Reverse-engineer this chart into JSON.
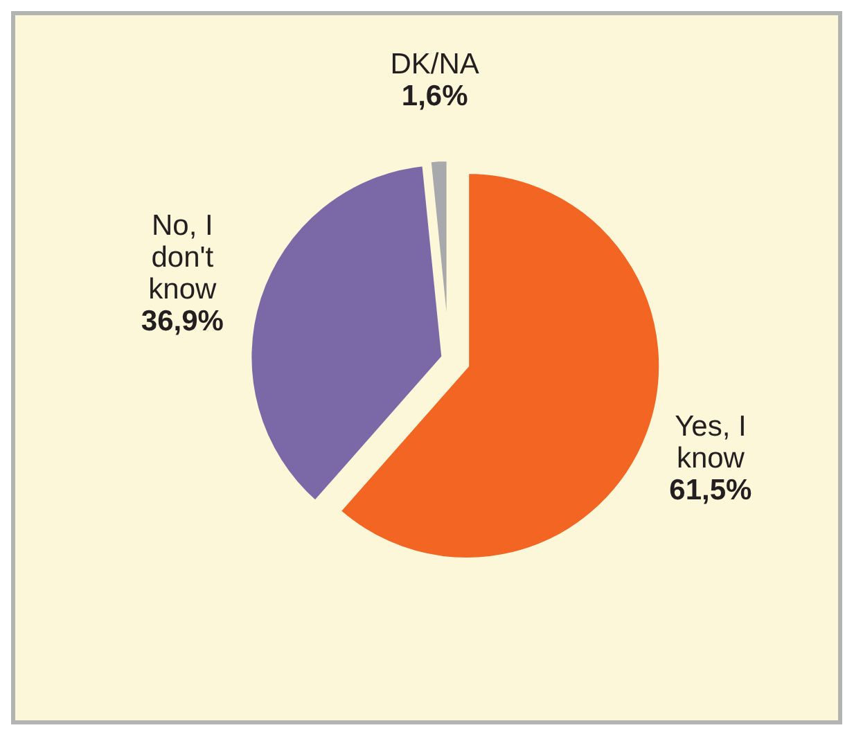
{
  "chart_data": {
    "type": "pie",
    "categories": [
      "Yes, I know",
      "No, I don't know",
      "DK/NA"
    ],
    "values": [
      61.5,
      36.9,
      1.6
    ],
    "value_labels": [
      "61,5%",
      "36,9%",
      "1,6%"
    ],
    "colors": [
      "#f26522",
      "#7b68a6",
      "#a7a9ac"
    ]
  }
}
